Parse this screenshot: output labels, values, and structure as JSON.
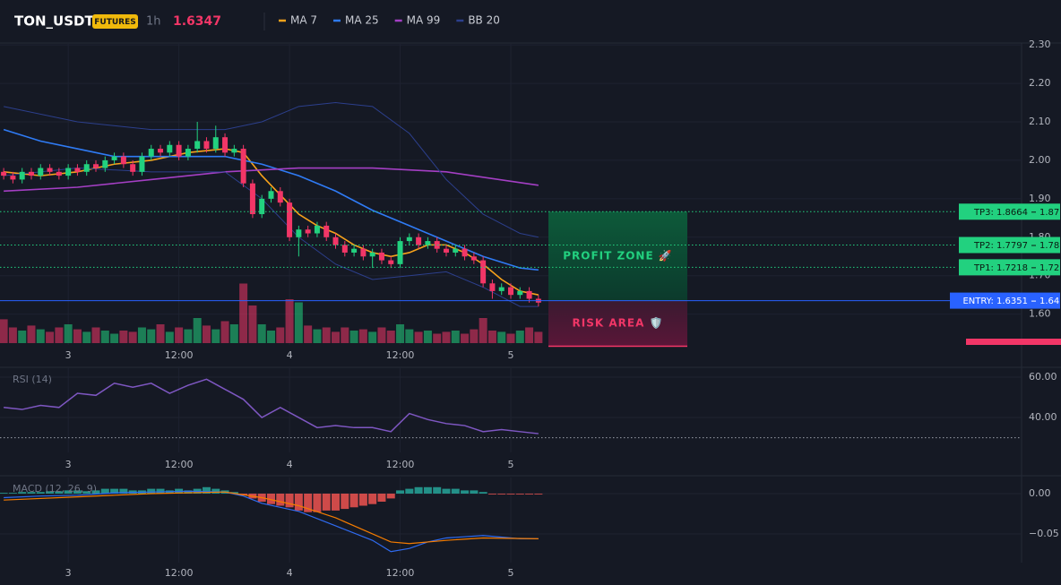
{
  "header": {
    "symbol": "TON_USDT",
    "badge": "FUTURES",
    "interval": "1h",
    "price": 1.6347
  },
  "chart_data": [
    {
      "type": "candlestick",
      "xlim": [
        -7.4,
        103.4
      ],
      "xticks": [
        {
          "value": 0,
          "label": "3"
        },
        {
          "value": 12,
          "label": "12:00"
        },
        {
          "value": 24,
          "label": "4"
        },
        {
          "value": 36,
          "label": "12:00"
        },
        {
          "value": 48,
          "label": "5"
        }
      ],
      "ylim": [
        1.52,
        2.305
      ],
      "yticks": [
        {
          "value": 2.3,
          "label": "2.30"
        },
        {
          "value": 2.2,
          "label": "2.20"
        },
        {
          "value": 2.1,
          "label": "2.10"
        },
        {
          "value": 2.0,
          "label": "2.00"
        },
        {
          "value": 1.9,
          "label": "1.90"
        },
        {
          "value": 1.8,
          "label": "1.80"
        },
        {
          "value": 1.7,
          "label": "1.70"
        },
        {
          "value": 1.6,
          "label": "1.60"
        }
      ],
      "up_color": "#22d17f",
      "down_color": "#f23667",
      "x": [
        -7,
        -6,
        -5,
        -4,
        -3,
        -2,
        -1,
        0,
        1,
        2,
        3,
        4,
        5,
        6,
        7,
        8,
        9,
        10,
        11,
        12,
        13,
        14,
        15,
        16,
        17,
        18,
        19,
        20,
        21,
        22,
        23,
        24,
        25,
        26,
        27,
        28,
        29,
        30,
        31,
        32,
        33,
        34,
        35,
        36,
        37,
        38,
        39,
        40,
        41,
        42,
        43,
        44,
        45,
        46,
        47,
        48,
        49,
        50,
        51
      ],
      "open": [
        1.97,
        1.96,
        1.95,
        1.97,
        1.96,
        1.98,
        1.97,
        1.96,
        1.98,
        1.97,
        1.99,
        1.98,
        2.0,
        2.01,
        1.99,
        1.97,
        2.01,
        2.03,
        2.02,
        2.04,
        2.01,
        2.03,
        2.05,
        2.03,
        2.06,
        2.02,
        2.03,
        1.94,
        1.86,
        1.9,
        1.92,
        1.89,
        1.8,
        1.82,
        1.81,
        1.83,
        1.8,
        1.78,
        1.76,
        1.77,
        1.75,
        1.76,
        1.74,
        1.73,
        1.79,
        1.8,
        1.78,
        1.79,
        1.77,
        1.76,
        1.77,
        1.75,
        1.74,
        1.68,
        1.66,
        1.67,
        1.65,
        1.66,
        1.64
      ],
      "high": [
        1.98,
        1.97,
        1.98,
        1.98,
        1.99,
        1.99,
        1.98,
        1.99,
        1.99,
        2.0,
        2.0,
        2.01,
        2.02,
        2.02,
        2.0,
        2.02,
        2.04,
        2.04,
        2.05,
        2.05,
        2.04,
        2.1,
        2.06,
        2.09,
        2.07,
        2.04,
        2.04,
        1.95,
        1.91,
        1.93,
        1.93,
        1.9,
        1.83,
        1.83,
        1.84,
        1.84,
        1.81,
        1.79,
        1.78,
        1.78,
        1.77,
        1.77,
        1.75,
        1.8,
        1.81,
        1.81,
        1.8,
        1.8,
        1.78,
        1.78,
        1.78,
        1.76,
        1.75,
        1.69,
        1.68,
        1.68,
        1.67,
        1.67,
        1.65
      ],
      "low": [
        1.95,
        1.94,
        1.94,
        1.95,
        1.95,
        1.96,
        1.95,
        1.95,
        1.96,
        1.96,
        1.97,
        1.97,
        1.99,
        1.98,
        1.96,
        1.96,
        2.0,
        2.01,
        2.01,
        2.0,
        2.0,
        2.02,
        2.02,
        2.02,
        2.01,
        2.01,
        1.93,
        1.85,
        1.85,
        1.89,
        1.88,
        1.79,
        1.75,
        1.8,
        1.8,
        1.79,
        1.77,
        1.75,
        1.75,
        1.74,
        1.72,
        1.73,
        1.72,
        1.72,
        1.78,
        1.77,
        1.77,
        1.76,
        1.75,
        1.75,
        1.74,
        1.73,
        1.67,
        1.64,
        1.65,
        1.64,
        1.64,
        1.63,
        1.62
      ],
      "close": [
        1.96,
        1.95,
        1.97,
        1.96,
        1.98,
        1.97,
        1.96,
        1.98,
        1.97,
        1.99,
        1.98,
        2.0,
        2.01,
        1.99,
        1.97,
        2.01,
        2.03,
        2.02,
        2.04,
        2.01,
        2.03,
        2.05,
        2.03,
        2.06,
        2.02,
        2.03,
        1.94,
        1.86,
        1.9,
        1.92,
        1.89,
        1.8,
        1.82,
        1.81,
        1.83,
        1.8,
        1.78,
        1.76,
        1.77,
        1.75,
        1.76,
        1.74,
        1.73,
        1.79,
        1.8,
        1.78,
        1.79,
        1.77,
        1.76,
        1.77,
        1.75,
        1.74,
        1.68,
        1.66,
        1.67,
        1.65,
        1.66,
        1.64,
        1.63
      ],
      "volume": [
        38,
        25,
        20,
        28,
        22,
        18,
        25,
        30,
        22,
        18,
        25,
        20,
        15,
        20,
        18,
        25,
        22,
        30,
        18,
        25,
        22,
        40,
        28,
        22,
        35,
        30,
        95,
        60,
        30,
        20,
        25,
        70,
        65,
        28,
        22,
        25,
        18,
        25,
        20,
        22,
        18,
        25,
        20,
        30,
        22,
        18,
        20,
        15,
        18,
        20,
        15,
        22,
        40,
        20,
        18,
        15,
        20,
        25,
        18
      ],
      "series": [
        {
          "name": "MA 7",
          "color": "#f7a21b",
          "x": [
            -7,
            -3,
            1,
            5,
            9,
            13,
            17,
            19,
            21,
            23,
            25,
            27,
            29,
            31,
            33,
            35,
            37,
            39,
            41,
            43,
            45,
            47,
            49,
            51
          ],
          "values": [
            1.97,
            1.96,
            1.97,
            1.99,
            2.0,
            2.02,
            2.03,
            2.02,
            1.96,
            1.91,
            1.86,
            1.83,
            1.81,
            1.78,
            1.76,
            1.75,
            1.76,
            1.78,
            1.78,
            1.76,
            1.73,
            1.69,
            1.66,
            1.65
          ]
        },
        {
          "name": "MA 25",
          "color": "#2f7bf5",
          "x": [
            -7,
            -3,
            1,
            5,
            9,
            13,
            17,
            21,
            25,
            29,
            33,
            37,
            41,
            45,
            49,
            51
          ],
          "values": [
            2.08,
            2.05,
            2.03,
            2.01,
            2.01,
            2.01,
            2.01,
            1.99,
            1.96,
            1.92,
            1.87,
            1.83,
            1.79,
            1.75,
            1.72,
            1.715
          ]
        },
        {
          "name": "MA 99",
          "color": "#a43fc4",
          "x": [
            -7,
            1,
            9,
            17,
            25,
            33,
            41,
            51
          ],
          "values": [
            1.92,
            1.93,
            1.95,
            1.97,
            1.98,
            1.98,
            1.97,
            1.935
          ]
        },
        {
          "name": "BB 20",
          "color": "#2c3f8c",
          "x": [
            -7,
            1,
            9,
            17,
            21,
            25,
            29,
            33,
            37,
            41,
            45,
            49,
            51
          ],
          "values": [
            2.14,
            2.1,
            2.08,
            2.08,
            2.1,
            2.14,
            2.15,
            2.14,
            2.07,
            1.95,
            1.86,
            1.81,
            1.8
          ],
          "lower": [
            1.96,
            1.98,
            1.97,
            1.97,
            1.9,
            1.8,
            1.73,
            1.69,
            1.7,
            1.71,
            1.67,
            1.62,
            1.62
          ]
        }
      ],
      "levels": [
        {
          "label": "TP3: 1.8664",
          "value": 1.8664,
          "axis_label": "1.87",
          "color": "#22d17f"
        },
        {
          "label": "TP2: 1.7797",
          "value": 1.7797,
          "axis_label": "1.78",
          "color": "#22d17f"
        },
        {
          "label": "TP1: 1.7218",
          "value": 1.7218,
          "axis_label": "1.72",
          "color": "#22d17f"
        },
        {
          "label": "ENTRY: 1.6351",
          "value": 1.6351,
          "axis_label": "1.64",
          "color": "#2962ff"
        }
      ],
      "stop_loss": 1.516,
      "zones": [
        {
          "label": "PROFIT ZONE 🚀",
          "from": 1.6351,
          "to": 1.8664,
          "color": "#22d17f"
        },
        {
          "label": "RISK AREA 🛡️",
          "from": 1.6351,
          "to": 1.516,
          "color": "#f23667"
        }
      ]
    },
    {
      "type": "line",
      "title": "RSI (14)",
      "xlim": [
        -7.4,
        103.4
      ],
      "xticks": [
        {
          "value": 0,
          "label": "3"
        },
        {
          "value": 12,
          "label": "12:00"
        },
        {
          "value": 24,
          "label": "4"
        },
        {
          "value": 36,
          "label": "12:00"
        },
        {
          "value": 48,
          "label": "5"
        }
      ],
      "ylim": [
        22.7,
        64.9
      ],
      "yticks": [
        {
          "value": 60,
          "label": "60.00"
        },
        {
          "value": 40,
          "label": "40.00"
        }
      ],
      "reference": 30,
      "series": [
        {
          "color": "#7e57c2",
          "x": [
            -7,
            -5,
            -3,
            -1,
            1,
            3,
            5,
            7,
            9,
            11,
            13,
            15,
            17,
            19,
            21,
            23,
            25,
            27,
            29,
            31,
            33,
            35,
            37,
            39,
            41,
            43,
            45,
            47,
            49,
            51
          ],
          "values": [
            45,
            44,
            46,
            45,
            52,
            51,
            57,
            55,
            57,
            52,
            56,
            59,
            54,
            49,
            40,
            45,
            40,
            35,
            36,
            35,
            35,
            33,
            42,
            39,
            37,
            36,
            33,
            34,
            33,
            32
          ]
        }
      ]
    },
    {
      "type": "macd",
      "title": "MACD (12, 26, 9)",
      "xlim": [
        -7.4,
        103.4
      ],
      "xticks": [
        {
          "value": 0,
          "label": "3"
        },
        {
          "value": 12,
          "label": "12:00"
        },
        {
          "value": 24,
          "label": "4"
        },
        {
          "value": 36,
          "label": "12:00"
        },
        {
          "value": 48,
          "label": "5"
        }
      ],
      "ylim": [
        -0.0856,
        0.02
      ],
      "yticks": [
        {
          "value": 0,
          "label": "0.00"
        },
        {
          "value": -0.05,
          "label": "−0.05"
        }
      ],
      "up_color": "#26a69a",
      "down_color": "#ef5350",
      "x": [
        -7,
        -6,
        -5,
        -4,
        -3,
        -2,
        -1,
        0,
        1,
        2,
        3,
        4,
        5,
        6,
        7,
        8,
        9,
        10,
        11,
        12,
        13,
        14,
        15,
        16,
        17,
        18,
        19,
        20,
        21,
        22,
        23,
        24,
        25,
        26,
        27,
        28,
        29,
        30,
        31,
        32,
        33,
        34,
        35,
        36,
        37,
        38,
        39,
        40,
        41,
        42,
        43,
        44,
        45,
        46,
        47,
        48,
        49,
        50,
        51
      ],
      "histogram": [
        0.001,
        0.001,
        0.002,
        0.002,
        0.002,
        0.003,
        0.003,
        0.004,
        0.004,
        0.003,
        0.004,
        0.006,
        0.006,
        0.006,
        0.004,
        0.004,
        0.006,
        0.006,
        0.004,
        0.006,
        0.004,
        0.006,
        0.008,
        0.006,
        0.004,
        0.002,
        -0.002,
        -0.006,
        -0.01,
        -0.013,
        -0.015,
        -0.017,
        -0.021,
        -0.023,
        -0.023,
        -0.021,
        -0.021,
        -0.019,
        -0.017,
        -0.015,
        -0.013,
        -0.01,
        -0.006,
        0.004,
        0.006,
        0.008,
        0.008,
        0.008,
        0.006,
        0.006,
        0.004,
        0.004,
        0.002,
        -0.001,
        -0.001,
        -0.001,
        -0.001,
        -0.001,
        -0.001
      ],
      "series": [
        {
          "color": "#2f6bf0",
          "x": [
            -7,
            -3,
            1,
            5,
            9,
            13,
            17,
            19,
            21,
            25,
            29,
            33,
            35,
            37,
            39,
            41,
            45,
            49,
            51
          ],
          "values": [
            -0.005,
            -0.003,
            -0.002,
            0.001,
            0.002,
            0.003,
            0.002,
            -0.003,
            -0.012,
            -0.022,
            -0.04,
            -0.058,
            -0.072,
            -0.068,
            -0.06,
            -0.055,
            -0.052,
            -0.056,
            -0.056
          ]
        },
        {
          "color": "#f57c00",
          "x": [
            -7,
            1,
            9,
            17,
            21,
            25,
            29,
            33,
            35,
            37,
            41,
            45,
            51
          ],
          "values": [
            -0.008,
            -0.004,
            0.0,
            0.002,
            -0.005,
            -0.015,
            -0.03,
            -0.05,
            -0.06,
            -0.062,
            -0.058,
            -0.055,
            -0.056
          ]
        }
      ]
    }
  ]
}
